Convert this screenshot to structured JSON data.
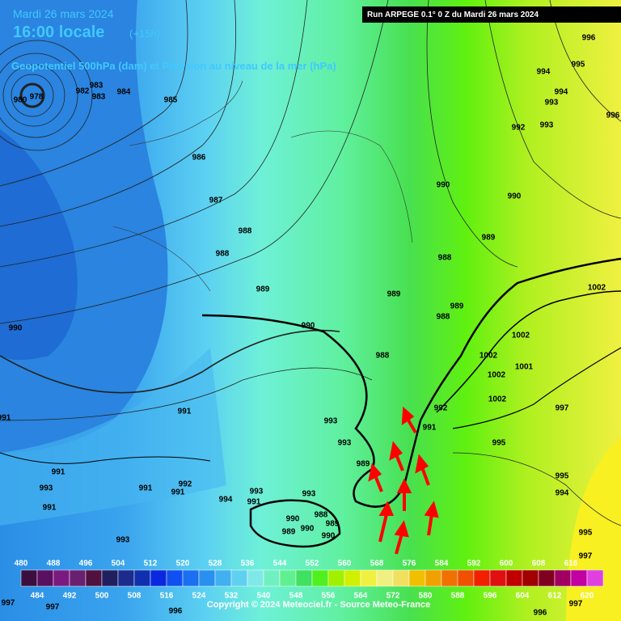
{
  "header": {
    "date": "Mardi 26 mars 2024",
    "time": "16:00 locale",
    "lead": "(+15h)",
    "field": "Geopotentiel 500hPa (dam) et Pression au niveau de la mer (hPa)",
    "run": "Run ARPEGE 0.1° 0 Z du Mardi 26 mars 2024"
  },
  "low_center": [
    "980",
    "978"
  ],
  "isobar_labels": [
    983,
    983,
    982,
    984,
    985,
    986,
    987,
    988,
    988,
    989,
    990,
    990,
    991,
    991,
    990,
    990,
    989,
    988,
    989,
    989,
    988,
    988,
    992,
    993,
    993,
    994,
    994,
    995,
    996,
    996,
    1002,
    1002,
    1001,
    1002,
    1002,
    1002,
    997,
    995,
    995,
    994,
    995,
    991,
    992,
    993,
    993,
    989,
    993,
    993,
    994,
    991,
    992,
    991,
    991,
    993,
    991,
    993,
    991,
    990,
    989,
    990,
    990,
    988,
    989,
    997,
    997,
    996,
    996,
    997,
    997
  ],
  "scale": {
    "values": [
      480,
      484,
      488,
      492,
      496,
      500,
      504,
      508,
      512,
      516,
      520,
      524,
      528,
      532,
      536,
      540,
      544,
      548,
      552,
      556,
      560,
      564,
      568,
      572,
      576,
      580,
      584,
      588,
      592,
      596,
      600,
      604,
      608,
      612,
      616,
      620
    ],
    "colors": [
      "#3a0f40",
      "#5a1060",
      "#7a1a80",
      "#6a2070",
      "#501040",
      "#202060",
      "#1c2c8c",
      "#1030b0",
      "#0a28e0",
      "#1050f0",
      "#1a70f0",
      "#2a90f0",
      "#40b0f0",
      "#60d0f0",
      "#80e8e8",
      "#70f0c0",
      "#60f090",
      "#40e060",
      "#50f020",
      "#a0f000",
      "#d0f000",
      "#f0f040",
      "#f0f080",
      "#f0e060",
      "#f0c000",
      "#f0a000",
      "#f07000",
      "#f05000",
      "#f02000",
      "#e01010",
      "#c00000",
      "#a00000",
      "#800020",
      "#a00060",
      "#c000a0",
      "#e040e0"
    ]
  },
  "copyright": "Copyright © 2024 Meteociel.fr - Source Meteo-France"
}
